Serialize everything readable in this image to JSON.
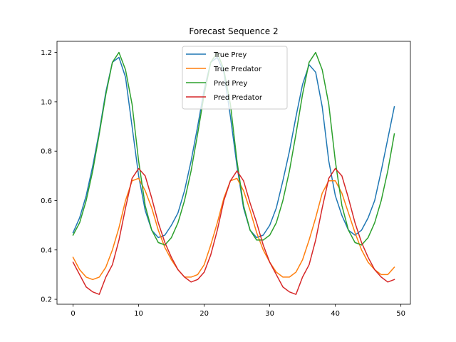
{
  "chart_data": {
    "type": "line",
    "title": "Forecast Sequence 2",
    "xlabel": "",
    "ylabel": "",
    "xlim": [
      -2.45,
      51.45
    ],
    "ylim": [
      0.18,
      1.245
    ],
    "xticks": [
      0,
      10,
      20,
      30,
      40,
      50
    ],
    "yticks": [
      0.2,
      0.4,
      0.6,
      0.8,
      1.0,
      1.2
    ],
    "ytick_labels": [
      "0.2",
      "0.4",
      "0.6",
      "0.8",
      "1.0",
      "1.2"
    ],
    "legend_position": "upper-center",
    "series": [
      {
        "name": "True Prey",
        "color": "#1f77b4",
        "values": [
          0.47,
          0.53,
          0.62,
          0.74,
          0.88,
          1.04,
          1.16,
          1.18,
          1.1,
          0.9,
          0.7,
          0.56,
          0.48,
          0.45,
          0.46,
          0.5,
          0.55,
          0.64,
          0.76,
          0.9,
          1.05,
          1.16,
          1.18,
          1.12,
          0.94,
          0.74,
          0.57,
          0.48,
          0.45,
          0.46,
          0.5,
          0.57,
          0.68,
          0.8,
          0.94,
          1.07,
          1.15,
          1.12,
          0.98,
          0.76,
          0.62,
          0.54,
          0.48,
          0.46,
          0.48,
          0.53,
          0.6,
          0.72,
          0.85,
          0.98
        ]
      },
      {
        "name": "True Predator",
        "color": "#ff7f0e",
        "values": [
          0.37,
          0.32,
          0.29,
          0.28,
          0.29,
          0.33,
          0.4,
          0.49,
          0.6,
          0.68,
          0.69,
          0.64,
          0.57,
          0.48,
          0.41,
          0.36,
          0.32,
          0.29,
          0.29,
          0.3,
          0.34,
          0.42,
          0.51,
          0.61,
          0.68,
          0.69,
          0.64,
          0.56,
          0.47,
          0.4,
          0.35,
          0.31,
          0.29,
          0.29,
          0.31,
          0.36,
          0.44,
          0.53,
          0.63,
          0.68,
          0.68,
          0.63,
          0.55,
          0.47,
          0.4,
          0.35,
          0.32,
          0.3,
          0.3,
          0.33
        ]
      },
      {
        "name": "Pred Prey",
        "color": "#2ca02c",
        "values": [
          0.46,
          0.51,
          0.6,
          0.72,
          0.87,
          1.03,
          1.16,
          1.2,
          1.13,
          0.99,
          0.76,
          0.58,
          0.48,
          0.43,
          0.42,
          0.45,
          0.51,
          0.6,
          0.72,
          0.87,
          1.03,
          1.16,
          1.2,
          1.13,
          0.99,
          0.76,
          0.58,
          0.48,
          0.44,
          0.44,
          0.46,
          0.51,
          0.6,
          0.72,
          0.87,
          1.03,
          1.16,
          1.2,
          1.13,
          0.99,
          0.76,
          0.58,
          0.48,
          0.43,
          0.42,
          0.45,
          0.51,
          0.6,
          0.72,
          0.87
        ]
      },
      {
        "name": "Pred Predator",
        "color": "#d62728",
        "values": [
          0.35,
          0.3,
          0.25,
          0.23,
          0.22,
          0.29,
          0.34,
          0.44,
          0.57,
          0.69,
          0.73,
          0.7,
          0.61,
          0.51,
          0.43,
          0.37,
          0.32,
          0.29,
          0.27,
          0.28,
          0.31,
          0.38,
          0.48,
          0.6,
          0.68,
          0.72,
          0.68,
          0.59,
          0.51,
          0.42,
          0.35,
          0.3,
          0.25,
          0.23,
          0.22,
          0.29,
          0.34,
          0.44,
          0.57,
          0.69,
          0.73,
          0.7,
          0.61,
          0.51,
          0.43,
          0.37,
          0.32,
          0.29,
          0.27,
          0.28
        ]
      }
    ]
  }
}
